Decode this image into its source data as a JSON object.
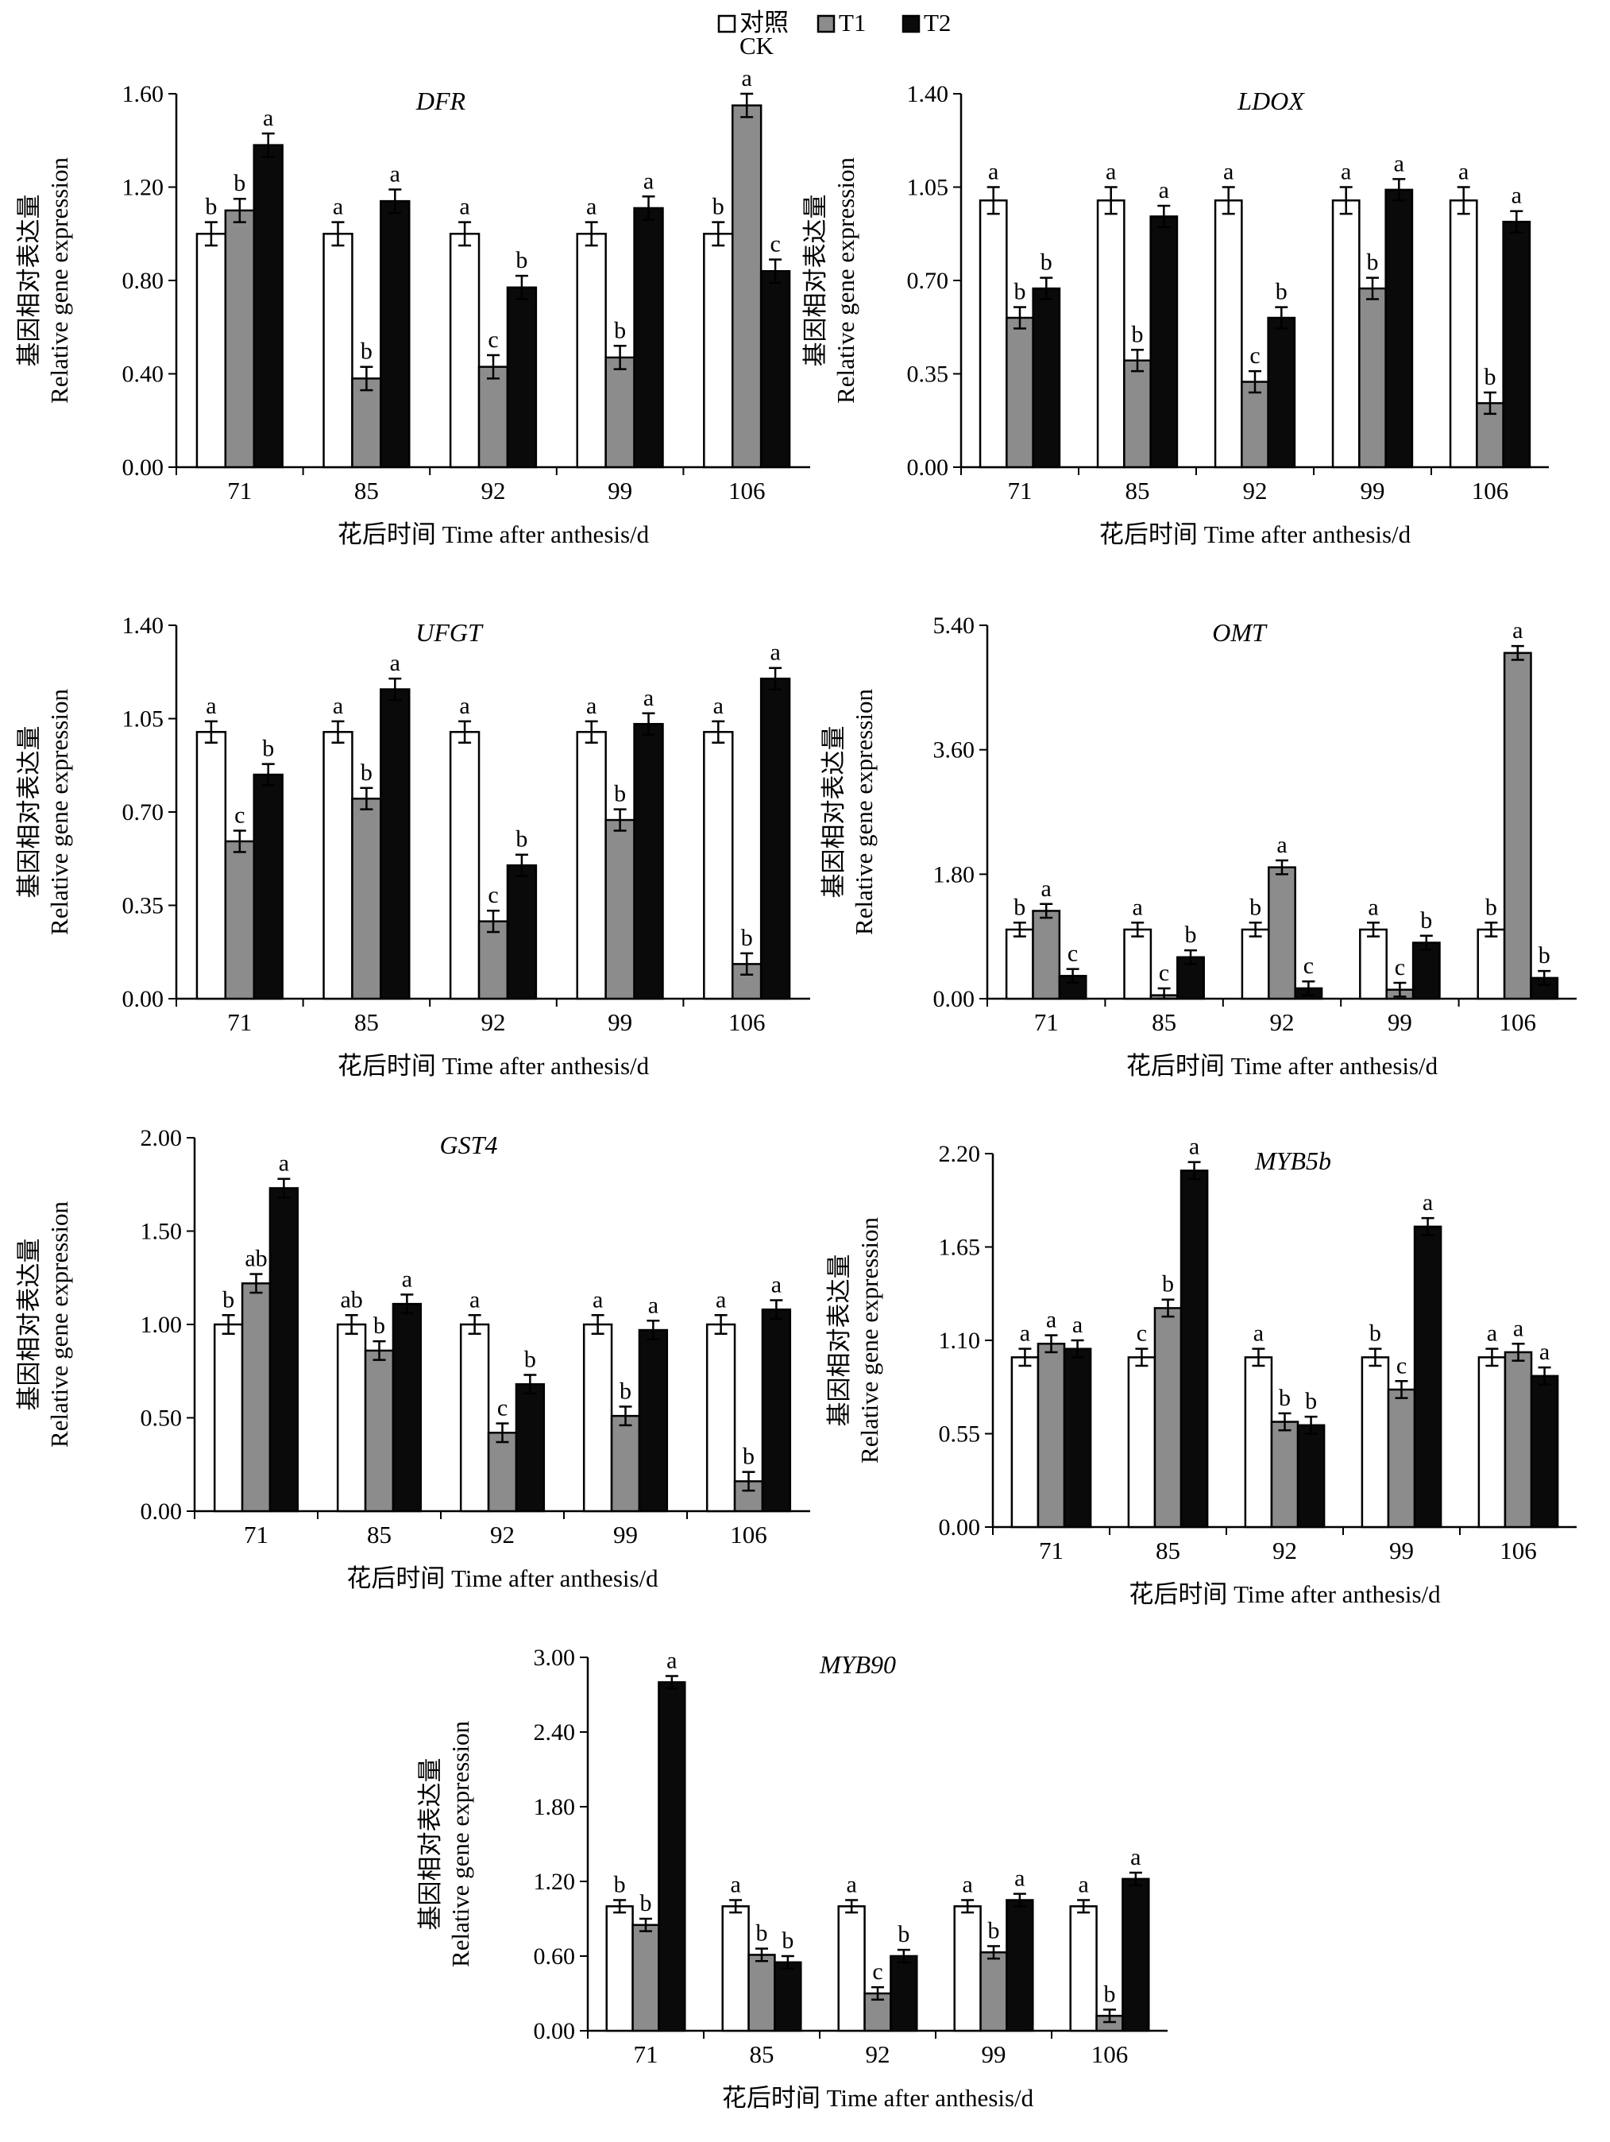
{
  "legend": [
    {
      "label": "对照",
      "sublabel": "CK",
      "color": "#ffffff"
    },
    {
      "label": "T1",
      "sublabel": "",
      "color": "#8c8c8c"
    },
    {
      "label": "T2",
      "sublabel": "",
      "color": "#0a0a0a"
    }
  ],
  "colors": {
    "ck": "#ffffff",
    "t1": "#8c8c8c",
    "t2": "#0a0a0a",
    "axis": "#000000"
  },
  "chart_data": [
    {
      "type": "bar",
      "title": "DFR",
      "categories": [
        "71",
        "85",
        "92",
        "99",
        "106"
      ],
      "xlabel": "花后时间 Time after anthesis/d",
      "ylabel_cn": "基因相对表达量",
      "ylabel_en": "Relative gene expression",
      "ylim": [
        0,
        1.6
      ],
      "yticks": [
        "0.00",
        "0.40",
        "0.80",
        "1.20",
        "1.60"
      ],
      "series": [
        {
          "name": "对照CK",
          "values": [
            1.0,
            1.0,
            1.0,
            1.0,
            1.0
          ],
          "errors": [
            0.05,
            0.05,
            0.05,
            0.05,
            0.05
          ],
          "labels": [
            "b",
            "a",
            "a",
            "a",
            "b"
          ]
        },
        {
          "name": "T1",
          "values": [
            1.1,
            0.38,
            0.43,
            0.47,
            1.55
          ],
          "errors": [
            0.05,
            0.05,
            0.05,
            0.05,
            0.05
          ],
          "labels": [
            "b",
            "b",
            "c",
            "b",
            "a"
          ]
        },
        {
          "name": "T2",
          "values": [
            1.38,
            1.14,
            0.77,
            1.11,
            0.84
          ],
          "errors": [
            0.05,
            0.05,
            0.05,
            0.05,
            0.05
          ],
          "labels": [
            "a",
            "a",
            "b",
            "a",
            "c"
          ]
        }
      ]
    },
    {
      "type": "bar",
      "title": "LDOX",
      "categories": [
        "71",
        "85",
        "92",
        "99",
        "106"
      ],
      "xlabel": "花后时间 Time after anthesis/d",
      "ylabel_cn": "基因相对表达量",
      "ylabel_en": "Relative gene expression",
      "ylim": [
        0,
        1.4
      ],
      "yticks": [
        "0.00",
        "0.35",
        "0.70",
        "1.05",
        "1.40"
      ],
      "series": [
        {
          "name": "对照CK",
          "values": [
            1.0,
            1.0,
            1.0,
            1.0,
            1.0
          ],
          "errors": [
            0.05,
            0.05,
            0.05,
            0.05,
            0.05
          ],
          "labels": [
            "a",
            "a",
            "a",
            "a",
            "a"
          ]
        },
        {
          "name": "T1",
          "values": [
            0.56,
            0.4,
            0.32,
            0.67,
            0.24
          ],
          "errors": [
            0.04,
            0.04,
            0.04,
            0.04,
            0.04
          ],
          "labels": [
            "b",
            "b",
            "c",
            "b",
            "b"
          ]
        },
        {
          "name": "T2",
          "values": [
            0.67,
            0.94,
            0.56,
            1.04,
            0.92
          ],
          "errors": [
            0.04,
            0.04,
            0.04,
            0.04,
            0.04
          ],
          "labels": [
            "b",
            "a",
            "b",
            "a",
            "a"
          ]
        }
      ]
    },
    {
      "type": "bar",
      "title": "UFGT",
      "categories": [
        "71",
        "85",
        "92",
        "99",
        "106"
      ],
      "xlabel": "花后时间 Time after anthesis/d",
      "ylabel_cn": "基因相对表达量",
      "ylabel_en": "Relative gene expression",
      "ylim": [
        0,
        1.4
      ],
      "yticks": [
        "0.00",
        "0.35",
        "0.70",
        "1.05",
        "1.40"
      ],
      "series": [
        {
          "name": "对照CK",
          "values": [
            1.0,
            1.0,
            1.0,
            1.0,
            1.0
          ],
          "errors": [
            0.04,
            0.04,
            0.04,
            0.04,
            0.04
          ],
          "labels": [
            "a",
            "a",
            "a",
            "a",
            "a"
          ]
        },
        {
          "name": "T1",
          "values": [
            0.59,
            0.75,
            0.29,
            0.67,
            0.13
          ],
          "errors": [
            0.04,
            0.04,
            0.04,
            0.04,
            0.04
          ],
          "labels": [
            "c",
            "b",
            "c",
            "b",
            "b"
          ]
        },
        {
          "name": "T2",
          "values": [
            0.84,
            1.16,
            0.5,
            1.03,
            1.2
          ],
          "errors": [
            0.04,
            0.04,
            0.04,
            0.04,
            0.04
          ],
          "labels": [
            "b",
            "a",
            "b",
            "a",
            "a"
          ]
        }
      ]
    },
    {
      "type": "bar",
      "title": "OMT",
      "categories": [
        "71",
        "85",
        "92",
        "99",
        "106"
      ],
      "xlabel": "花后时间 Time after anthesis/d",
      "ylabel_cn": "基因相对表达量",
      "ylabel_en": "Relative gene expression",
      "ylim": [
        0,
        5.4
      ],
      "yticks": [
        "0.00",
        "1.80",
        "3.60",
        "5.40"
      ],
      "series": [
        {
          "name": "对照CK",
          "values": [
            1.0,
            1.0,
            1.0,
            1.0,
            1.0
          ],
          "errors": [
            0.1,
            0.1,
            0.1,
            0.1,
            0.1
          ],
          "labels": [
            "b",
            "a",
            "b",
            "a",
            "b"
          ]
        },
        {
          "name": "T1",
          "values": [
            1.27,
            0.05,
            1.9,
            0.13,
            5.0
          ],
          "errors": [
            0.1,
            0.1,
            0.1,
            0.1,
            0.1
          ],
          "labels": [
            "a",
            "c",
            "a",
            "c",
            "a"
          ]
        },
        {
          "name": "T2",
          "values": [
            0.33,
            0.6,
            0.15,
            0.81,
            0.3
          ],
          "errors": [
            0.1,
            0.1,
            0.1,
            0.1,
            0.1
          ],
          "labels": [
            "c",
            "b",
            "c",
            "b",
            "b"
          ]
        }
      ]
    },
    {
      "type": "bar",
      "title": "GST4",
      "categories": [
        "71",
        "85",
        "92",
        "99",
        "106"
      ],
      "xlabel": "花后时间 Time after anthesis/d",
      "ylabel_cn": "基因相对表达量",
      "ylabel_en": "Relative gene expression",
      "ylim": [
        0,
        2.0
      ],
      "yticks": [
        "0.00",
        "0.50",
        "1.00",
        "1.50",
        "2.00"
      ],
      "series": [
        {
          "name": "对照CK",
          "values": [
            1.0,
            1.0,
            1.0,
            1.0,
            1.0
          ],
          "errors": [
            0.05,
            0.05,
            0.05,
            0.05,
            0.05
          ],
          "labels": [
            "b",
            "ab",
            "a",
            "a",
            "a"
          ]
        },
        {
          "name": "T1",
          "values": [
            1.22,
            0.86,
            0.42,
            0.51,
            0.16
          ],
          "errors": [
            0.05,
            0.05,
            0.05,
            0.05,
            0.05
          ],
          "labels": [
            "ab",
            "b",
            "c",
            "b",
            "b"
          ]
        },
        {
          "name": "T2",
          "values": [
            1.73,
            1.11,
            0.68,
            0.97,
            1.08
          ],
          "errors": [
            0.05,
            0.05,
            0.05,
            0.05,
            0.05
          ],
          "labels": [
            "a",
            "a",
            "b",
            "a",
            "a"
          ]
        }
      ]
    },
    {
      "type": "bar",
      "title": "MYB5b",
      "categories": [
        "71",
        "85",
        "92",
        "99",
        "106"
      ],
      "xlabel": "花后时间 Time after anthesis/d",
      "ylabel_cn": "基因相对表达量",
      "ylabel_en": "Relative gene expression",
      "ylim": [
        0,
        2.2
      ],
      "yticks": [
        "0.00",
        "0.55",
        "1.10",
        "1.65",
        "2.20"
      ],
      "series": [
        {
          "name": "对照CK",
          "values": [
            1.0,
            1.0,
            1.0,
            1.0,
            1.0
          ],
          "errors": [
            0.05,
            0.05,
            0.05,
            0.05,
            0.05
          ],
          "labels": [
            "a",
            "c",
            "a",
            "b",
            "a"
          ]
        },
        {
          "name": "T1",
          "values": [
            1.08,
            1.29,
            0.62,
            0.81,
            1.03
          ],
          "errors": [
            0.05,
            0.05,
            0.05,
            0.05,
            0.05
          ],
          "labels": [
            "a",
            "b",
            "b",
            "c",
            "a"
          ]
        },
        {
          "name": "T2",
          "values": [
            1.05,
            2.1,
            0.6,
            1.77,
            0.89
          ],
          "errors": [
            0.05,
            0.05,
            0.05,
            0.05,
            0.05
          ],
          "labels": [
            "a",
            "a",
            "b",
            "a",
            "a"
          ]
        }
      ]
    },
    {
      "type": "bar",
      "title": "MYB90",
      "categories": [
        "71",
        "85",
        "92",
        "99",
        "106"
      ],
      "xlabel": "花后时间 Time after anthesis/d",
      "ylabel_cn": "基因相对表达量",
      "ylabel_en": "Relative gene expression",
      "ylim": [
        0,
        3.0
      ],
      "yticks": [
        "0.00",
        "0.60",
        "1.20",
        "1.80",
        "2.40",
        "3.00"
      ],
      "series": [
        {
          "name": "对照CK",
          "values": [
            1.0,
            1.0,
            1.0,
            1.0,
            1.0
          ],
          "errors": [
            0.05,
            0.05,
            0.05,
            0.05,
            0.05
          ],
          "labels": [
            "b",
            "a",
            "a",
            "a",
            "a"
          ]
        },
        {
          "name": "T1",
          "values": [
            0.85,
            0.61,
            0.3,
            0.63,
            0.12
          ],
          "errors": [
            0.05,
            0.05,
            0.05,
            0.05,
            0.05
          ],
          "labels": [
            "b",
            "b",
            "c",
            "b",
            "b"
          ]
        },
        {
          "name": "T2",
          "values": [
            2.8,
            0.55,
            0.6,
            1.05,
            1.22
          ],
          "errors": [
            0.05,
            0.05,
            0.05,
            0.05,
            0.05
          ],
          "labels": [
            "a",
            "b",
            "b",
            "a",
            "a"
          ]
        }
      ]
    }
  ]
}
